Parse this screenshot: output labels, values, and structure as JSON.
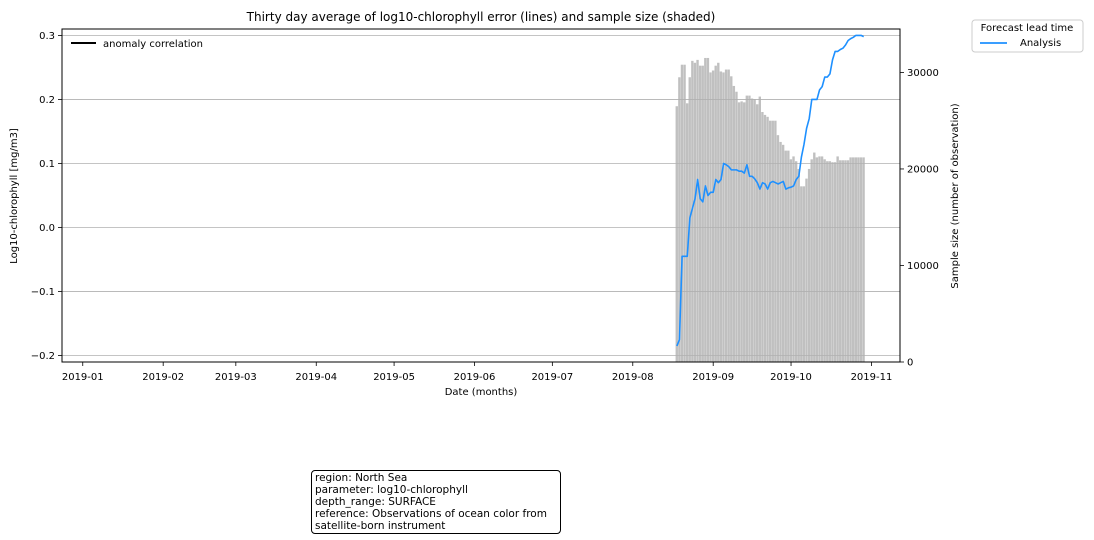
{
  "chart_data": {
    "type": "line",
    "title": "Thirty day average of log10-chlorophyll error (lines) and sample size (shaded)",
    "xlabel": "Date (months)",
    "ylabel": "Log10-chlorophyll [mg/m3]",
    "ylabel_right": "Sample size (number of observation)",
    "x_ticks": [
      "2019-01",
      "2019-02",
      "2019-03",
      "2019-04",
      "2019-05",
      "2019-06",
      "2019-07",
      "2019-08",
      "2019-09",
      "2019-10",
      "2019-11"
    ],
    "x_range": [
      "2018-12-24",
      "2019-11-12"
    ],
    "y_ticks": [
      "0.3",
      "0.2",
      "0.1",
      "0.0",
      "−0.1",
      "−0.2"
    ],
    "ylim": [
      -0.21,
      0.31
    ],
    "y2_ticks": [
      "0",
      "10000",
      "20000",
      "30000"
    ],
    "y2lim": [
      0,
      34500
    ],
    "grid": "horizontal",
    "inner_legend": {
      "label": "anomaly correlation",
      "color": "#000000",
      "placement": "upper-left"
    },
    "legend": {
      "title": "Forecast lead time",
      "placement": "outside-upper-right",
      "entries": [
        {
          "label": "Analysis",
          "color": "#1e90ff"
        }
      ]
    },
    "series": [
      {
        "name": "Analysis",
        "color": "#1e90ff",
        "axis": "left",
        "x": [
          "2019-08-18",
          "2019-08-19",
          "2019-08-20",
          "2019-08-22",
          "2019-08-23",
          "2019-08-25",
          "2019-08-26",
          "2019-08-27",
          "2019-08-28",
          "2019-08-29",
          "2019-08-30",
          "2019-08-31",
          "2019-09-01",
          "2019-09-02",
          "2019-09-03",
          "2019-09-04",
          "2019-09-05",
          "2019-09-06",
          "2019-09-07",
          "2019-09-08",
          "2019-09-09",
          "2019-09-10",
          "2019-09-11",
          "2019-09-12",
          "2019-09-13",
          "2019-09-14",
          "2019-09-15",
          "2019-09-16",
          "2019-09-17",
          "2019-09-18",
          "2019-09-19",
          "2019-09-20",
          "2019-09-21",
          "2019-09-22",
          "2019-09-23",
          "2019-09-24",
          "2019-09-25",
          "2019-09-26",
          "2019-09-27",
          "2019-09-28",
          "2019-09-29",
          "2019-09-30",
          "2019-10-01",
          "2019-10-02",
          "2019-10-03",
          "2019-10-04",
          "2019-10-05",
          "2019-10-06",
          "2019-10-07",
          "2019-10-08",
          "2019-10-09",
          "2019-10-10",
          "2019-10-11",
          "2019-10-12",
          "2019-10-13",
          "2019-10-14",
          "2019-10-15",
          "2019-10-16",
          "2019-10-17",
          "2019-10-18",
          "2019-10-19",
          "2019-10-20",
          "2019-10-21",
          "2019-10-22",
          "2019-10-23",
          "2019-10-24",
          "2019-10-25",
          "2019-10-26",
          "2019-10-27",
          "2019-10-28",
          "2019-10-29"
        ],
        "y": [
          -0.185,
          -0.175,
          -0.045,
          -0.045,
          0.015,
          0.045,
          0.075,
          0.045,
          0.04,
          0.065,
          0.05,
          0.055,
          0.055,
          0.075,
          0.07,
          0.075,
          0.1,
          0.098,
          0.095,
          0.09,
          0.09,
          0.09,
          0.088,
          0.088,
          0.085,
          0.098,
          0.08,
          0.08,
          0.076,
          0.07,
          0.06,
          0.07,
          0.068,
          0.06,
          0.07,
          0.072,
          0.07,
          0.068,
          0.07,
          0.072,
          0.06,
          0.062,
          0.063,
          0.065,
          0.075,
          0.08,
          0.11,
          0.13,
          0.155,
          0.17,
          0.2,
          0.2,
          0.2,
          0.215,
          0.22,
          0.235,
          0.235,
          0.24,
          0.262,
          0.275,
          0.275,
          0.278,
          0.28,
          0.285,
          0.292,
          0.295,
          0.297,
          0.3,
          0.3,
          0.3,
          0.298
        ]
      },
      {
        "name": "",
        "color": "#c0c0c0",
        "axis": "right",
        "chart": "bar",
        "x": [
          "2019-08-18",
          "2019-08-19",
          "2019-08-20",
          "2019-08-21",
          "2019-08-22",
          "2019-08-23",
          "2019-08-24",
          "2019-08-25",
          "2019-08-26",
          "2019-08-27",
          "2019-08-28",
          "2019-08-29",
          "2019-08-30",
          "2019-08-31",
          "2019-09-01",
          "2019-09-02",
          "2019-09-03",
          "2019-09-04",
          "2019-09-05",
          "2019-09-06",
          "2019-09-07",
          "2019-09-08",
          "2019-09-09",
          "2019-09-10",
          "2019-09-11",
          "2019-09-12",
          "2019-09-13",
          "2019-09-14",
          "2019-09-15",
          "2019-09-16",
          "2019-09-17",
          "2019-09-18",
          "2019-09-19",
          "2019-09-20",
          "2019-09-21",
          "2019-09-22",
          "2019-09-23",
          "2019-09-24",
          "2019-09-25",
          "2019-09-26",
          "2019-09-27",
          "2019-09-28",
          "2019-09-29",
          "2019-09-30",
          "2019-10-01",
          "2019-10-02",
          "2019-10-03",
          "2019-10-04",
          "2019-10-05",
          "2019-10-06",
          "2019-10-07",
          "2019-10-08",
          "2019-10-09",
          "2019-10-10",
          "2019-10-11",
          "2019-10-12",
          "2019-10-13",
          "2019-10-14",
          "2019-10-15",
          "2019-10-16",
          "2019-10-17",
          "2019-10-18",
          "2019-10-19",
          "2019-10-20",
          "2019-10-21",
          "2019-10-22",
          "2019-10-23",
          "2019-10-24",
          "2019-10-25",
          "2019-10-26",
          "2019-10-27",
          "2019-10-28",
          "2019-10-29"
        ],
        "values": [
          26500,
          29500,
          30800,
          30800,
          26800,
          29500,
          31200,
          31000,
          31300,
          30700,
          30700,
          31500,
          31500,
          30000,
          30200,
          30700,
          31000,
          30100,
          30000,
          30300,
          30300,
          29600,
          28600,
          28000,
          26900,
          27000,
          26900,
          27600,
          27600,
          27300,
          27200,
          26700,
          27500,
          25900,
          25600,
          25400,
          25000,
          25000,
          25000,
          23500,
          22800,
          22500,
          21900,
          21900,
          21000,
          21300,
          20800,
          20000,
          18200,
          18200,
          19000,
          20000,
          21000,
          21700,
          21200,
          21300,
          21300,
          21000,
          20800,
          20800,
          20700,
          20700,
          21300,
          20900,
          20900,
          20900,
          20900,
          21200,
          21200,
          21200,
          21200,
          21200,
          21200
        ]
      }
    ]
  },
  "info_box": {
    "lines": [
      "region: North Sea",
      "parameter: log10-chlorophyll",
      "depth_range: SURFACE",
      "reference: Observations of ocean color from satellite-born instrument"
    ]
  }
}
